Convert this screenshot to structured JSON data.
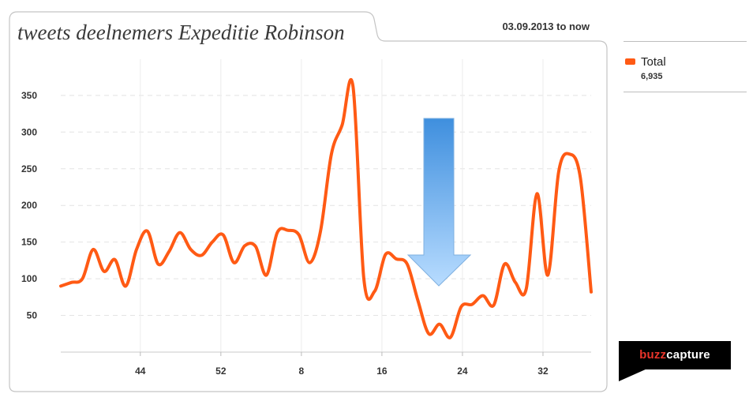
{
  "chart_data": {
    "type": "line",
    "title": "tweets deelnemers Expeditie Robinson",
    "date_range": "03.09.2013 to now",
    "ylim": [
      0,
      385
    ],
    "y_ticks": [
      50,
      100,
      150,
      200,
      250,
      300,
      350
    ],
    "x_ticks": [
      "44",
      "52",
      "8",
      "16",
      "24",
      "32"
    ],
    "grid": true,
    "legend_position": "right",
    "series": [
      {
        "name": "Total",
        "total": "6,935",
        "color": "#ff5a14",
        "values": [
          90,
          95,
          100,
          140,
          110,
          126,
          90,
          140,
          165,
          120,
          137,
          163,
          140,
          132,
          150,
          160,
          122,
          145,
          144,
          105,
          163,
          166,
          160,
          122,
          165,
          270,
          310,
          362,
          100,
          83,
          133,
          127,
          120,
          70,
          25,
          38,
          20,
          62,
          65,
          77,
          64,
          120,
          95,
          86,
          216,
          105,
          246,
          270,
          238,
          82
        ]
      }
    ]
  },
  "legend": {
    "name": "Total",
    "total": "6,935"
  },
  "logo": {
    "part1": "buzz",
    "part2": "capture"
  },
  "arrow": {
    "direction": "down",
    "color_top": "#3f8fde",
    "color_bottom": "#b8dcff"
  }
}
